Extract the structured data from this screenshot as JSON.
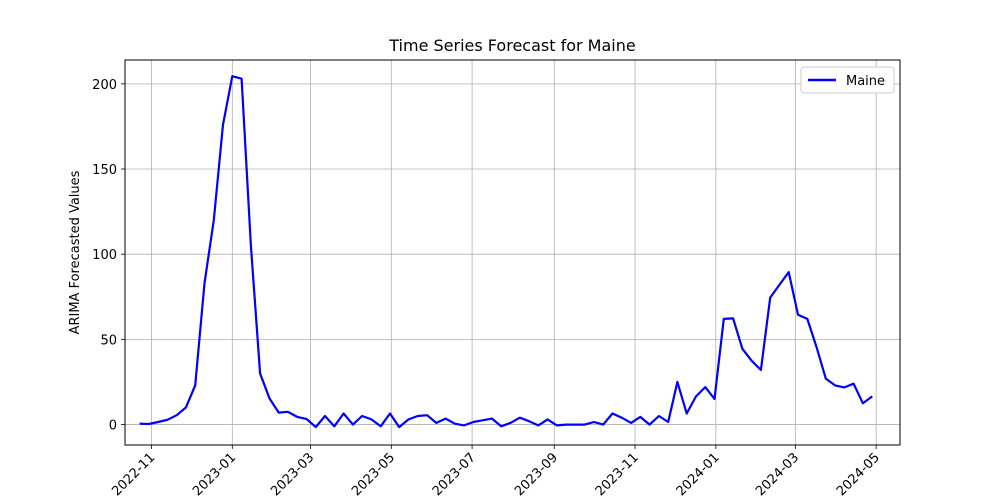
{
  "chart_data": {
    "type": "line",
    "title": "Time Series Forecast for Maine",
    "xlabel": "",
    "ylabel": "ARIMA Forecasted Values",
    "ylim": [
      -12,
      214
    ],
    "xlim": [
      "2022-10-12",
      "2024-05-19"
    ],
    "yticks": [
      0,
      50,
      100,
      150,
      200
    ],
    "xticks": [
      "2022-11",
      "2023-01",
      "2023-03",
      "2023-05",
      "2023-07",
      "2023-09",
      "2023-11",
      "2024-01",
      "2024-03",
      "2024-05"
    ],
    "grid": true,
    "legend_position": "top-right",
    "color": "#0000ff",
    "series": [
      {
        "name": "Maine",
        "x": [
          "2022-10-23",
          "2022-10-30",
          "2022-11-06",
          "2022-11-13",
          "2022-11-20",
          "2022-11-27",
          "2022-12-04",
          "2022-12-11",
          "2022-12-18",
          "2022-12-25",
          "2023-01-01",
          "2023-01-08",
          "2023-01-15",
          "2023-01-22",
          "2023-01-29",
          "2023-02-05",
          "2023-02-12",
          "2023-02-19",
          "2023-02-26",
          "2023-03-05",
          "2023-03-12",
          "2023-03-19",
          "2023-03-26",
          "2023-04-02",
          "2023-04-09",
          "2023-04-16",
          "2023-04-23",
          "2023-04-30",
          "2023-05-07",
          "2023-05-14",
          "2023-05-21",
          "2023-05-28",
          "2023-06-04",
          "2023-06-11",
          "2023-06-18",
          "2023-06-25",
          "2023-07-02",
          "2023-07-09",
          "2023-07-16",
          "2023-07-23",
          "2023-07-30",
          "2023-08-06",
          "2023-08-13",
          "2023-08-20",
          "2023-08-27",
          "2023-09-03",
          "2023-09-10",
          "2023-09-17",
          "2023-09-24",
          "2023-10-01",
          "2023-10-08",
          "2023-10-15",
          "2023-10-22",
          "2023-10-29",
          "2023-11-05",
          "2023-11-12",
          "2023-11-19",
          "2023-11-26",
          "2023-12-03",
          "2023-12-10",
          "2023-12-17",
          "2023-12-24",
          "2023-12-31",
          "2024-01-07",
          "2024-01-14",
          "2024-01-21",
          "2024-01-28",
          "2024-02-04",
          "2024-02-11",
          "2024-02-18",
          "2024-02-25",
          "2024-03-03",
          "2024-03-10",
          "2024-03-17",
          "2024-03-24",
          "2024-03-31",
          "2024-04-07",
          "2024-04-14",
          "2024-04-21",
          "2024-04-28"
        ],
        "values": [
          0.5,
          0.3,
          1.5,
          2.8,
          5.5,
          10,
          23,
          83,
          120,
          176,
          204.5,
          203,
          105,
          30,
          15.5,
          7,
          7.5,
          4.5,
          3.3,
          -1.5,
          5,
          -1,
          6.5,
          0,
          5,
          3,
          -1,
          6.5,
          -1.5,
          3,
          5,
          5.5,
          1,
          3.5,
          0.5,
          -0.5,
          1.5,
          2.5,
          3.5,
          -1,
          1,
          4,
          2,
          -0.5,
          3,
          -0.5,
          0,
          0,
          0,
          1.5,
          0,
          6.5,
          4,
          1,
          4.5,
          0,
          5,
          1.5,
          25,
          6.5,
          16.5,
          22,
          15,
          62,
          62.3,
          44.5,
          37.5,
          32,
          74.5,
          82,
          89.5,
          64.5,
          62,
          45.5,
          27,
          23,
          21.8,
          24,
          12.5,
          16.5
        ]
      }
    ]
  }
}
